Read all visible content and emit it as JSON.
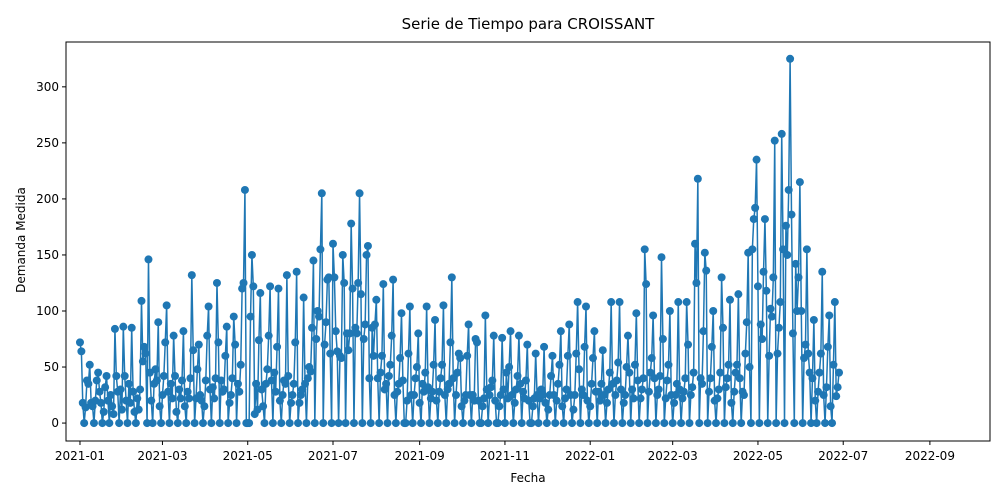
{
  "chart_data": {
    "type": "line",
    "title": "Serie de Tiempo para CROISSANT",
    "xlabel": "Fecha",
    "ylabel": "Demanda Medida",
    "xlim": [
      "2020-12-22",
      "2022-10-14"
    ],
    "ylim": [
      -16,
      340
    ],
    "x_ticks": [
      "2021-01-01",
      "2021-03-01",
      "2021-05-01",
      "2021-07-01",
      "2021-09-01",
      "2021-11-01",
      "2022-01-01",
      "2022-03-01",
      "2022-05-01",
      "2022-07-01",
      "2022-09-01"
    ],
    "x_tick_labels": [
      "2021-01",
      "2021-03",
      "2021-05",
      "2021-07",
      "2021-09",
      "2021-11",
      "2022-01",
      "2022-03",
      "2022-05",
      "2022-07",
      "2022-09"
    ],
    "y_ticks": [
      0,
      50,
      100,
      150,
      200,
      250,
      300
    ],
    "y_tick_labels": [
      "0",
      "50",
      "100",
      "150",
      "200",
      "250",
      "300"
    ],
    "grid": false,
    "legend": "none",
    "marker": "circle",
    "series": [
      {
        "color": "#1f77b4",
        "start_date": "2021-01-01",
        "frequency": "daily",
        "values": [
          72,
          64,
          18,
          0,
          14,
          38,
          35,
          52,
          18,
          15,
          0,
          20,
          38,
          45,
          28,
          18,
          0,
          10,
          32,
          42,
          20,
          0,
          25,
          15,
          8,
          84,
          42,
          28,
          0,
          30,
          12,
          86,
          42,
          20,
          0,
          35,
          18,
          85,
          28,
          10,
          0,
          22,
          12,
          30,
          109,
          55,
          68,
          62,
          0,
          146,
          45,
          20,
          0,
          35,
          48,
          38,
          90,
          15,
          0,
          25,
          42,
          72,
          105,
          28,
          0,
          35,
          22,
          78,
          42,
          10,
          0,
          30,
          22,
          38,
          82,
          15,
          0,
          28,
          22,
          40,
          132,
          65,
          0,
          22,
          48,
          70,
          25,
          20,
          0,
          15,
          38,
          78,
          104,
          30,
          0,
          32,
          22,
          40,
          125,
          72,
          0,
          38,
          28,
          30,
          60,
          86,
          0,
          18,
          25,
          40,
          95,
          70,
          0,
          35,
          28,
          52,
          120,
          125,
          208,
          0,
          0,
          0,
          95,
          150,
          122,
          8,
          35,
          12,
          74,
          116,
          30,
          15,
          0,
          35,
          48,
          78,
          122,
          38,
          0,
          45,
          28,
          68,
          120,
          20,
          0,
          25,
          38,
          35,
          132,
          42,
          0,
          18,
          25,
          35,
          72,
          135,
          0,
          18,
          25,
          30,
          112,
          35,
          0,
          40,
          50,
          46,
          85,
          145,
          0,
          75,
          100,
          95,
          155,
          205,
          0,
          70,
          90,
          128,
          130,
          62,
          0,
          160,
          130,
          82,
          64,
          0,
          60,
          58,
          150,
          125,
          0,
          80,
          65,
          80,
          178,
          120,
          0,
          85,
          80,
          125,
          205,
          115,
          0,
          75,
          88,
          150,
          158,
          40,
          0,
          85,
          60,
          88,
          110,
          40,
          0,
          45,
          60,
          124,
          30,
          35,
          0,
          42,
          52,
          78,
          128,
          25,
          0,
          28,
          35,
          58,
          98,
          38,
          0,
          0,
          20,
          62,
          104,
          25,
          0,
          25,
          40,
          50,
          80,
          18,
          0,
          35,
          28,
          45,
          104,
          32,
          0,
          22,
          28,
          52,
          92,
          20,
          0,
          28,
          40,
          52,
          105,
          25,
          0,
          30,
          35,
          72,
          130,
          40,
          0,
          25,
          45,
          62,
          58,
          15,
          0,
          20,
          25,
          60,
          88,
          25,
          0,
          25,
          20,
          75,
          72,
          20,
          0,
          0,
          15,
          22,
          96,
          30,
          0,
          25,
          32,
          38,
          78,
          20,
          0,
          0,
          15,
          25,
          76,
          30,
          0,
          45,
          22,
          50,
          82,
          25,
          0,
          18,
          30,
          42,
          78,
          35,
          0,
          28,
          22,
          38,
          70,
          20,
          0,
          0,
          15,
          22,
          62,
          25,
          0,
          22,
          30,
          25,
          68,
          18,
          0,
          12,
          25,
          42,
          60,
          25,
          0,
          20,
          35,
          52,
          82,
          15,
          0,
          22,
          30,
          60,
          88,
          25,
          0,
          12,
          25,
          62,
          108,
          48,
          0,
          30,
          25,
          68,
          104,
          20,
          0,
          15,
          35,
          58,
          82,
          28,
          0,
          28,
          20,
          35,
          65,
          25,
          0,
          18,
          30,
          45,
          108,
          35,
          0,
          25,
          38,
          54,
          108,
          30,
          0,
          18,
          25,
          50,
          78,
          45,
          0,
          30,
          22,
          52,
          98,
          38,
          0,
          22,
          30,
          40,
          155,
          124,
          0,
          28,
          45,
          58,
          96,
          40,
          0,
          25,
          30,
          42,
          148,
          75,
          0,
          22,
          38,
          52,
          100,
          25,
          0,
          18,
          25,
          35,
          108,
          30,
          0,
          22,
          28,
          40,
          108,
          70,
          0,
          25,
          32,
          45,
          160,
          125,
          218,
          0,
          40,
          35,
          82,
          152,
          136,
          0,
          28,
          40,
          68,
          100,
          20,
          0,
          22,
          30,
          45,
          130,
          85,
          0,
          32,
          40,
          52,
          110,
          18,
          0,
          28,
          45,
          52,
          115,
          40,
          0,
          28,
          25,
          62,
          90,
          152,
          50,
          0,
          155,
          182,
          192,
          235,
          122,
          0,
          88,
          75,
          135,
          182,
          118,
          0,
          60,
          102,
          95,
          130,
          252,
          0,
          62,
          85,
          108,
          258,
          155,
          0,
          176,
          150,
          208,
          325,
          186,
          80,
          0,
          142,
          100,
          130,
          215,
          100,
          0,
          58,
          70,
          155,
          62,
          45,
          0,
          40,
          92,
          20,
          0,
          28,
          45,
          62,
          135,
          25,
          0,
          32,
          68,
          96,
          15,
          0,
          52,
          108,
          24,
          32,
          45
        ]
      }
    ]
  }
}
